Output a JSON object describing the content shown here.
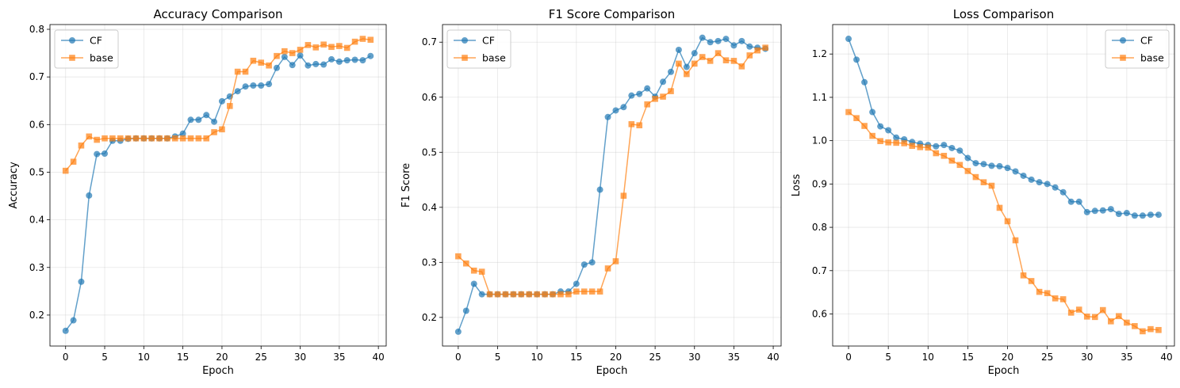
{
  "colors": {
    "CF": "#1f77b4",
    "base": "#ff7f0e"
  },
  "chart_data": [
    {
      "type": "line",
      "title": "Accuracy Comparison",
      "xlabel": "Epoch",
      "ylabel": "Accuracy",
      "xlim": [
        -2,
        41
      ],
      "ylim": [
        0.135,
        0.81
      ],
      "xticks": [
        0,
        5,
        10,
        15,
        20,
        25,
        30,
        35,
        40
      ],
      "yticks": [
        0.2,
        0.3,
        0.4,
        0.5,
        0.6,
        0.7,
        0.8
      ],
      "grid": true,
      "legend": "upper-left",
      "x": [
        0,
        1,
        2,
        3,
        4,
        5,
        6,
        7,
        8,
        9,
        10,
        11,
        12,
        13,
        14,
        15,
        16,
        17,
        18,
        19,
        20,
        21,
        22,
        23,
        24,
        25,
        26,
        27,
        28,
        29,
        30,
        31,
        32,
        33,
        34,
        35,
        36,
        37,
        38,
        39
      ],
      "series": [
        {
          "name": "CF",
          "marker": "circle",
          "values": [
            0.167,
            0.189,
            0.27,
            0.451,
            0.538,
            0.539,
            0.566,
            0.566,
            0.57,
            0.571,
            0.571,
            0.571,
            0.571,
            0.571,
            0.575,
            0.581,
            0.61,
            0.61,
            0.62,
            0.606,
            0.649,
            0.659,
            0.67,
            0.68,
            0.682,
            0.682,
            0.685,
            0.719,
            0.742,
            0.725,
            0.745,
            0.724,
            0.727,
            0.726,
            0.737,
            0.732,
            0.735,
            0.736,
            0.735,
            0.744
          ]
        },
        {
          "name": "base",
          "marker": "square",
          "values": [
            0.503,
            0.522,
            0.556,
            0.575,
            0.568,
            0.571,
            0.571,
            0.571,
            0.571,
            0.571,
            0.571,
            0.571,
            0.571,
            0.571,
            0.571,
            0.571,
            0.571,
            0.571,
            0.571,
            0.584,
            0.59,
            0.639,
            0.711,
            0.711,
            0.734,
            0.73,
            0.724,
            0.744,
            0.754,
            0.75,
            0.757,
            0.767,
            0.762,
            0.768,
            0.763,
            0.765,
            0.761,
            0.774,
            0.78,
            0.778
          ]
        }
      ]
    },
    {
      "type": "line",
      "title": "F1 Score Comparison",
      "xlabel": "Epoch",
      "ylabel": "F1 Score",
      "xlim": [
        -2,
        41
      ],
      "ylim": [
        0.148,
        0.732
      ],
      "xticks": [
        0,
        5,
        10,
        15,
        20,
        25,
        30,
        35,
        40
      ],
      "yticks": [
        0.2,
        0.3,
        0.4,
        0.5,
        0.6,
        0.7
      ],
      "grid": true,
      "legend": "upper-left",
      "x": [
        0,
        1,
        2,
        3,
        4,
        5,
        6,
        7,
        8,
        9,
        10,
        11,
        12,
        13,
        14,
        15,
        16,
        17,
        18,
        19,
        20,
        21,
        22,
        23,
        24,
        25,
        26,
        27,
        28,
        29,
        30,
        31,
        32,
        33,
        34,
        35,
        36,
        37,
        38,
        39
      ],
      "series": [
        {
          "name": "CF",
          "marker": "circle",
          "values": [
            0.174,
            0.212,
            0.261,
            0.242,
            0.242,
            0.242,
            0.242,
            0.242,
            0.242,
            0.242,
            0.242,
            0.242,
            0.242,
            0.247,
            0.247,
            0.261,
            0.296,
            0.3,
            0.432,
            0.564,
            0.576,
            0.582,
            0.603,
            0.606,
            0.616,
            0.601,
            0.628,
            0.646,
            0.686,
            0.655,
            0.68,
            0.708,
            0.7,
            0.702,
            0.706,
            0.694,
            0.702,
            0.692,
            0.69,
            0.688
          ]
        },
        {
          "name": "base",
          "marker": "square",
          "values": [
            0.311,
            0.298,
            0.285,
            0.283,
            0.242,
            0.242,
            0.242,
            0.242,
            0.242,
            0.242,
            0.242,
            0.242,
            0.242,
            0.242,
            0.242,
            0.247,
            0.247,
            0.247,
            0.247,
            0.289,
            0.302,
            0.421,
            0.551,
            0.549,
            0.587,
            0.597,
            0.601,
            0.611,
            0.661,
            0.642,
            0.661,
            0.673,
            0.666,
            0.68,
            0.667,
            0.666,
            0.656,
            0.676,
            0.685,
            0.69
          ]
        }
      ]
    },
    {
      "type": "line",
      "title": "Loss Comparison",
      "xlabel": "Epoch",
      "ylabel": "Loss",
      "xlim": [
        -2,
        41
      ],
      "ylim": [
        0.526,
        1.268
      ],
      "xticks": [
        0,
        5,
        10,
        15,
        20,
        25,
        30,
        35,
        40
      ],
      "yticks": [
        0.6,
        0.7,
        0.8,
        0.9,
        1.0,
        1.1,
        1.2
      ],
      "grid": true,
      "legend": "upper-right",
      "x": [
        0,
        1,
        2,
        3,
        4,
        5,
        6,
        7,
        8,
        9,
        10,
        11,
        12,
        13,
        14,
        15,
        16,
        17,
        18,
        19,
        20,
        21,
        22,
        23,
        24,
        25,
        26,
        27,
        28,
        29,
        30,
        31,
        32,
        33,
        34,
        35,
        36,
        37,
        38,
        39
      ],
      "series": [
        {
          "name": "CF",
          "marker": "circle",
          "values": [
            1.235,
            1.187,
            1.135,
            1.066,
            1.033,
            1.024,
            1.007,
            1.003,
            0.997,
            0.993,
            0.99,
            0.987,
            0.99,
            0.983,
            0.977,
            0.96,
            0.948,
            0.946,
            0.942,
            0.941,
            0.937,
            0.929,
            0.919,
            0.91,
            0.904,
            0.9,
            0.892,
            0.881,
            0.859,
            0.859,
            0.835,
            0.838,
            0.839,
            0.842,
            0.831,
            0.833,
            0.827,
            0.827,
            0.829,
            0.829
          ]
        },
        {
          "name": "base",
          "marker": "square",
          "values": [
            1.066,
            1.052,
            1.034,
            1.011,
            0.999,
            0.996,
            0.995,
            0.994,
            0.988,
            0.985,
            0.984,
            0.971,
            0.965,
            0.954,
            0.944,
            0.93,
            0.916,
            0.904,
            0.896,
            0.845,
            0.814,
            0.77,
            0.689,
            0.676,
            0.651,
            0.648,
            0.636,
            0.634,
            0.603,
            0.61,
            0.594,
            0.593,
            0.609,
            0.583,
            0.595,
            0.58,
            0.572,
            0.56,
            0.565,
            0.563
          ]
        }
      ]
    }
  ]
}
